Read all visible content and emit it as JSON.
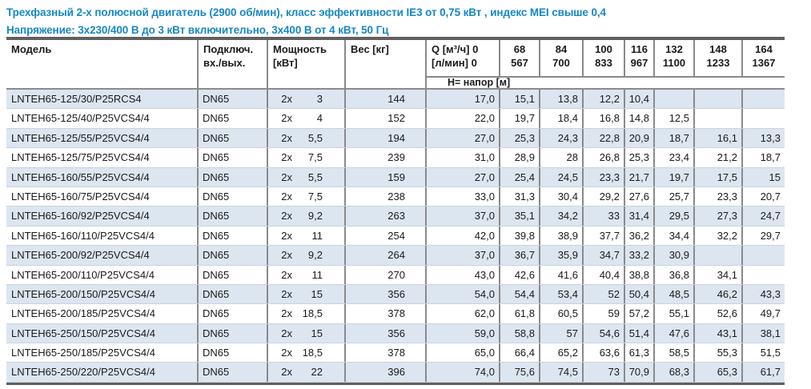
{
  "colors": {
    "title_blue": "#1787c3",
    "row_alt_blue": "#dce6f1",
    "border_gray": "#8a8a8a",
    "bar_dark": "#606060",
    "row_separator": "#ccd2db",
    "text_color": "#1a1a1a"
  },
  "title": {
    "line1": "Трехфазный 2-х полюсной двигатель (2900 об/мин), класс эффективности IE3 от 0,75 кВт ,  индекс MEI свыше 0,4",
    "line2": "Напряжение: 3х230/400 В до 3 кВт включительно, 3х400 В от 4 кВт, 50 Гц"
  },
  "table": {
    "header": {
      "model": "Модель",
      "connection_line1": "Подключ.",
      "connection_line2": "вх./вых.",
      "power_line1": "Мощность",
      "power_line2": "[кВт]",
      "weight": "Вес [кг]",
      "flow_zero_line1": "Q [м³/ч] 0",
      "flow_zero_line2": "[л/мин] 0",
      "head_row_label": "Н= напор [м]",
      "flow_columns": [
        {
          "m3h": "68",
          "lmin": "567"
        },
        {
          "m3h": "84",
          "lmin": "700"
        },
        {
          "m3h": "100",
          "lmin": "833"
        },
        {
          "m3h": "116",
          "lmin": "967"
        },
        {
          "m3h": "132",
          "lmin": "1100"
        },
        {
          "m3h": "148",
          "lmin": "1233"
        },
        {
          "m3h": "164",
          "lmin": "1367"
        }
      ]
    },
    "rows": [
      {
        "model": "LNTEH65-125/30/P25RCS4",
        "connection": "DN65",
        "power_prefix": "2x",
        "power_value": "3",
        "weight": "144",
        "h": [
          "17,0",
          "15,1",
          "13,8",
          "12,2",
          "10,4",
          "",
          "",
          ""
        ]
      },
      {
        "model": "LNTEH65-125/40/P25VCS4/4",
        "connection": "DN65",
        "power_prefix": "2x",
        "power_value": "4",
        "weight": "152",
        "h": [
          "22,0",
          "19,7",
          "18,4",
          "16,8",
          "14,8",
          "12,5",
          "",
          ""
        ]
      },
      {
        "model": "LNTEH65-125/55/P25VCS4/4",
        "connection": "DN65",
        "power_prefix": "2x",
        "power_value": "5,5",
        "weight": "194",
        "h": [
          "27,0",
          "25,3",
          "24,3",
          "22,8",
          "20,9",
          "18,7",
          "16,1",
          "13,3"
        ]
      },
      {
        "model": "LNTEH65-125/75/P25VCS4/4",
        "connection": "DN65",
        "power_prefix": "2x",
        "power_value": "7,5",
        "weight": "239",
        "h": [
          "31,0",
          "28,9",
          "28",
          "26,8",
          "25,3",
          "23,4",
          "21,2",
          "18,7"
        ]
      },
      {
        "model": "LNTEH65-160/55/P25VCS4/4",
        "connection": "DN65",
        "power_prefix": "2x",
        "power_value": "5,5",
        "weight": "159",
        "h": [
          "27,0",
          "25,4",
          "24,5",
          "23,3",
          "21,7",
          "19,7",
          "17,5",
          "15"
        ]
      },
      {
        "model": "LNTEH65-160/75/P25VCS4/4",
        "connection": "DN65",
        "power_prefix": "2x",
        "power_value": "7,5",
        "weight": "238",
        "h": [
          "33,0",
          "31,3",
          "30,4",
          "29,2",
          "27,6",
          "25,7",
          "23,3",
          "20,7"
        ]
      },
      {
        "model": "LNTEH65-160/92/P25VCS4/4",
        "connection": "DN65",
        "power_prefix": "2x",
        "power_value": "9,2",
        "weight": "263",
        "h": [
          "37,0",
          "35,1",
          "34,2",
          "33",
          "31,4",
          "29,5",
          "27,3",
          "24,7"
        ]
      },
      {
        "model": "LNTEH65-160/110/P25VCS4/4",
        "connection": "DN65",
        "power_prefix": "2x",
        "power_value": "11",
        "weight": "254",
        "h": [
          "42,0",
          "39,8",
          "38,9",
          "37,7",
          "36,2",
          "34,4",
          "32,2",
          "29,7"
        ]
      },
      {
        "model": "LNTEH65-200/92/P25VCS4/4",
        "connection": "DN65",
        "power_prefix": "2x",
        "power_value": "9,2",
        "weight": "264",
        "h": [
          "37,0",
          "36,7",
          "35,9",
          "34,7",
          "33,2",
          "30,9",
          "",
          ""
        ]
      },
      {
        "model": "LNTEH65-200/110/P25VCS4/4",
        "connection": "DN65",
        "power_prefix": "2x",
        "power_value": "11",
        "weight": "270",
        "h": [
          "43,0",
          "42,6",
          "41,6",
          "40,4",
          "38,8",
          "36,8",
          "34,1",
          ""
        ]
      },
      {
        "model": "LNTEH65-200/150/P25VCS4/4",
        "connection": "DN65",
        "power_prefix": "2x",
        "power_value": "15",
        "weight": "356",
        "h": [
          "54,0",
          "54,4",
          "53,4",
          "52",
          "50,4",
          "48,5",
          "46,2",
          "43,3"
        ]
      },
      {
        "model": "LNTEH65-200/185/P25VCS4/4",
        "connection": "DN65",
        "power_prefix": "2x",
        "power_value": "18,5",
        "weight": "378",
        "h": [
          "62,0",
          "61,8",
          "60,5",
          "59",
          "57,2",
          "55,1",
          "52,6",
          "49,7"
        ]
      },
      {
        "model": "LNTEH65-250/150/P25VCS4/4",
        "connection": "DN65",
        "power_prefix": "2x",
        "power_value": "15",
        "weight": "356",
        "h": [
          "59,0",
          "58,8",
          "57",
          "54,6",
          "51,4",
          "47,6",
          "43,1",
          "38,1"
        ]
      },
      {
        "model": "LNTEH65-250/185/P25VCS4/4",
        "connection": "DN65",
        "power_prefix": "2x",
        "power_value": "18,5",
        "weight": "378",
        "h": [
          "65,0",
          "66,4",
          "65,2",
          "63,6",
          "61,3",
          "58,5",
          "55,3",
          "51,5"
        ]
      },
      {
        "model": "LNTEH65-250/220/P25VCS4/4",
        "connection": "DN65",
        "power_prefix": "2x",
        "power_value": "22",
        "weight": "396",
        "h": [
          "74,0",
          "75,6",
          "74,5",
          "73",
          "70,9",
          "68,3",
          "65,3",
          "61,7"
        ]
      }
    ]
  }
}
